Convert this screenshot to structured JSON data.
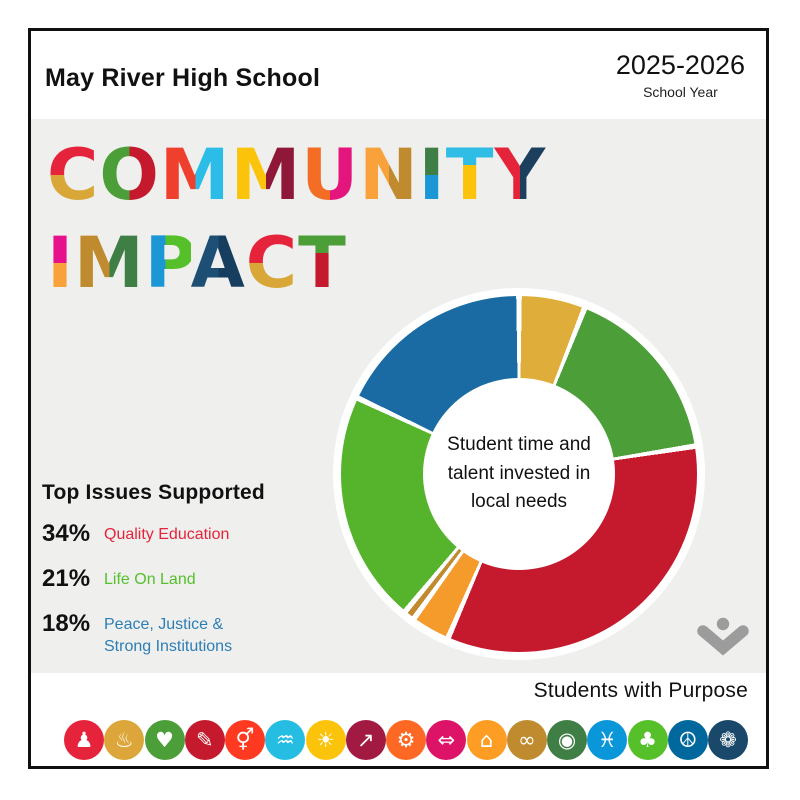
{
  "header": {
    "school": "May River High School",
    "year": "2025-2026",
    "year_caption": "School Year"
  },
  "title": {
    "full_text": "COMMUNITY IMPACT",
    "lines": [
      [
        {
          "ch": "C",
          "c1": "#e5243b",
          "c2": "#d9a738",
          "dir": "v",
          "split": 50
        },
        {
          "ch": "O",
          "c1": "#4c9f38",
          "c2": "#c5192d",
          "dir": "h",
          "split": 50
        },
        {
          "ch": "M",
          "c1": "#ef402d",
          "c2": "#2bbde8",
          "dir": "h",
          "split": 50
        },
        {
          "ch": "M",
          "c1": "#fcc30b",
          "c2": "#8f1838",
          "dir": "h",
          "split": 50
        },
        {
          "ch": "U",
          "c1": "#f36d25",
          "c2": "#e5157e",
          "dir": "h",
          "split": 50
        },
        {
          "ch": "N",
          "c1": "#f9a13a",
          "c2": "#bf8b2e",
          "dir": "h",
          "split": 50
        },
        {
          "ch": "I",
          "c1": "#3f7e44",
          "c2": "#1b97d5",
          "dir": "v",
          "split": 50
        },
        {
          "ch": "T",
          "c1": "#2fbde5",
          "c2": "#fcc30b",
          "dir": "v",
          "split": 38
        },
        {
          "ch": "Y",
          "c1": "#e5243b",
          "c2": "#1c3f5e",
          "dir": "h",
          "split": 50
        }
      ],
      [
        {
          "ch": "I",
          "c1": "#e8118c",
          "c2": "#f9a13a",
          "dir": "v",
          "split": 50
        },
        {
          "ch": "M",
          "c1": "#bf8b2e",
          "c2": "#3f7e44",
          "dir": "h",
          "split": 50
        },
        {
          "ch": "P",
          "c1": "#1b97d5",
          "c2": "#56c02b",
          "dir": "h",
          "split": 45
        },
        {
          "ch": "A",
          "c1": "#1d4f74",
          "c2": "#173e5e",
          "dir": "h",
          "split": 50
        },
        {
          "ch": "C",
          "c1": "#e5243b",
          "c2": "#d9a738",
          "dir": "v",
          "split": 50
        },
        {
          "ch": "T",
          "c1": "#4c9f38",
          "c2": "#c5192d",
          "dir": "v",
          "split": 38
        }
      ]
    ]
  },
  "chart_data": {
    "type": "donut",
    "center_label": "Student time and talent invested in local needs",
    "start_angle_deg": 0,
    "direction": "clockwise",
    "gap_color": "#ffffff",
    "segments": [
      {
        "label": "",
        "color": "#dfae3a",
        "value": 6
      },
      {
        "label": "",
        "color": "#4c9f38",
        "value": 16.5
      },
      {
        "label": "Quality Education",
        "color": "#c5192d",
        "value": 34
      },
      {
        "label": "",
        "color": "#f49b2b",
        "value": 3.5
      },
      {
        "label": "",
        "color": "#bf8b2e",
        "value": 1
      },
      {
        "label": "Life On Land",
        "color": "#56b32c",
        "value": 21
      },
      {
        "label": "Peace, Justice & Strong Institutions",
        "color": "#1a6ba3",
        "value": 18
      }
    ]
  },
  "legend": {
    "heading": "Top Issues Supported",
    "items": [
      {
        "pct": "34%",
        "label": "Quality Education",
        "color": "#e5243b"
      },
      {
        "pct": "21%",
        "label": "Life On Land",
        "color": "#56c02b"
      },
      {
        "pct": "18%",
        "label": "Peace, Justice & Strong Institutions",
        "color": "#2d7eb5"
      }
    ]
  },
  "footer": {
    "brand": "Students with Purpose",
    "logo_color": "#9c9c9c"
  },
  "sdg_icons": [
    {
      "name": "sdg-1-no-poverty-icon",
      "color": "#e5243b",
      "glyph": "♟"
    },
    {
      "name": "sdg-2-zero-hunger-icon",
      "color": "#dda63a",
      "glyph": "♨"
    },
    {
      "name": "sdg-3-good-health-icon",
      "color": "#4c9f38",
      "glyph": "♥"
    },
    {
      "name": "sdg-4-quality-education-icon",
      "color": "#c5192d",
      "glyph": "✎"
    },
    {
      "name": "sdg-5-gender-equality-icon",
      "color": "#ff3a21",
      "glyph": "⚥"
    },
    {
      "name": "sdg-6-clean-water-icon",
      "color": "#26bde2",
      "glyph": "♒"
    },
    {
      "name": "sdg-7-clean-energy-icon",
      "color": "#fcc30b",
      "glyph": "☀"
    },
    {
      "name": "sdg-8-decent-work-icon",
      "color": "#a21942",
      "glyph": "↗"
    },
    {
      "name": "sdg-9-industry-innovation-icon",
      "color": "#fd6925",
      "glyph": "⚙"
    },
    {
      "name": "sdg-10-reduced-inequalities-icon",
      "color": "#dd1367",
      "glyph": "⇔"
    },
    {
      "name": "sdg-11-sustainable-cities-icon",
      "color": "#fd9d24",
      "glyph": "⌂"
    },
    {
      "name": "sdg-12-responsible-consumption-icon",
      "color": "#bf8b2e",
      "glyph": "∞"
    },
    {
      "name": "sdg-13-climate-action-icon",
      "color": "#3f7e44",
      "glyph": "◉"
    },
    {
      "name": "sdg-14-life-below-water-icon",
      "color": "#0a97d9",
      "glyph": "♓"
    },
    {
      "name": "sdg-15-life-on-land-icon",
      "color": "#56c02b",
      "glyph": "♣"
    },
    {
      "name": "sdg-16-peace-justice-icon",
      "color": "#00689d",
      "glyph": "☮"
    },
    {
      "name": "sdg-17-partnerships-icon",
      "color": "#19486a",
      "glyph": "❁"
    }
  ]
}
